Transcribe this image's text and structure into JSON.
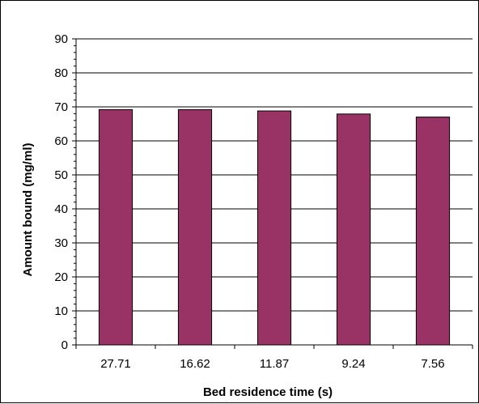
{
  "chart_data": {
    "type": "bar",
    "title": "",
    "xlabel": "Bed residence time (s)",
    "ylabel": "Amount bound (mg/ml)",
    "categories": [
      "27.71",
      "16.62",
      "11.87",
      "9.24",
      "7.56"
    ],
    "values": [
      69.2,
      69.2,
      68.8,
      67.9,
      67.0
    ],
    "ylim": [
      0,
      90
    ],
    "yticks": [
      "0",
      "10",
      "20",
      "30",
      "40",
      "50",
      "60",
      "70",
      "80",
      "90"
    ],
    "grid": true,
    "legend": "none",
    "colors": {
      "bar_fill": "#993366",
      "bar_stroke": "#000000",
      "grid": "#000000",
      "axis": "#000000",
      "background": "#ffffff"
    }
  }
}
